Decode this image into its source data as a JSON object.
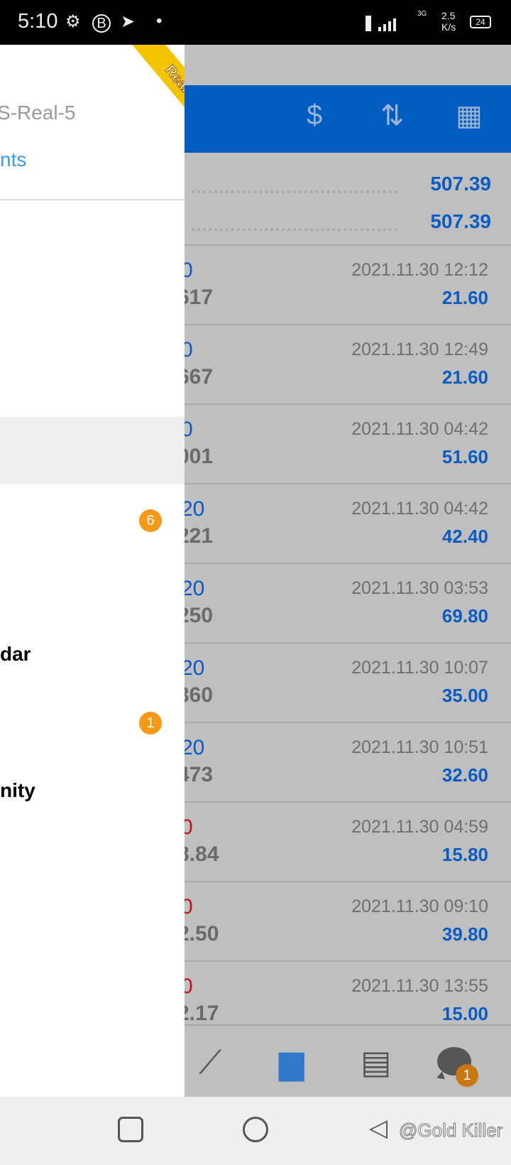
{
  "status_bar": {
    "time": "5:10",
    "speed": "2.5",
    "speed_unit": "K/s",
    "battery": "24",
    "network": "3G"
  },
  "drawer": {
    "ribbon": "Real",
    "server": "S-Real-5",
    "accounts_link": "nts",
    "items": [
      {
        "label": "dar"
      },
      {
        "label": "nity"
      }
    ],
    "badges": [
      "6",
      "1"
    ]
  },
  "header": {
    "icons": [
      "currency-exchange-icon",
      "sort-icon",
      "calendar-icon"
    ]
  },
  "summary": [
    "507.39",
    "507.39"
  ],
  "rows": [
    {
      "symbol": "0",
      "symbol_color": "#0a5cc2",
      "price": "617",
      "date": "2021.11.30 12:12",
      "value": "21.60"
    },
    {
      "symbol": "0",
      "symbol_color": "#0a5cc2",
      "price": "667",
      "date": "2021.11.30 12:49",
      "value": "21.60"
    },
    {
      "symbol": "0",
      "symbol_color": "#0a5cc2",
      "price": "001",
      "date": "2021.11.30 04:42",
      "value": "51.60"
    },
    {
      "symbol": "20",
      "symbol_color": "#0a5cc2",
      "price": "221",
      "date": "2021.11.30 04:42",
      "value": "42.40"
    },
    {
      "symbol": "20",
      "symbol_color": "#0a5cc2",
      "price": "250",
      "date": "2021.11.30 03:53",
      "value": "69.80"
    },
    {
      "symbol": "20",
      "symbol_color": "#0a5cc2",
      "price": "360",
      "date": "2021.11.30 10:07",
      "value": "35.00"
    },
    {
      "symbol": "20",
      "symbol_color": "#0a5cc2",
      "price": "473",
      "date": "2021.11.30 10:51",
      "value": "32.60"
    },
    {
      "symbol": "0",
      "symbol_color": "#c0141a",
      "price": "8.84",
      "date": "2021.11.30 04:59",
      "value": "15.80"
    },
    {
      "symbol": "0",
      "symbol_color": "#c0141a",
      "price": "2.50",
      "date": "2021.11.30 09:10",
      "value": "39.80"
    },
    {
      "symbol": "0",
      "symbol_color": "#c0141a",
      "price": "2.17",
      "date": "2021.11.30 13:55",
      "value": "15.00"
    }
  ],
  "tabbar": {
    "chat_badge": "1",
    "active": "history"
  },
  "watermark": "@Gold Killer"
}
